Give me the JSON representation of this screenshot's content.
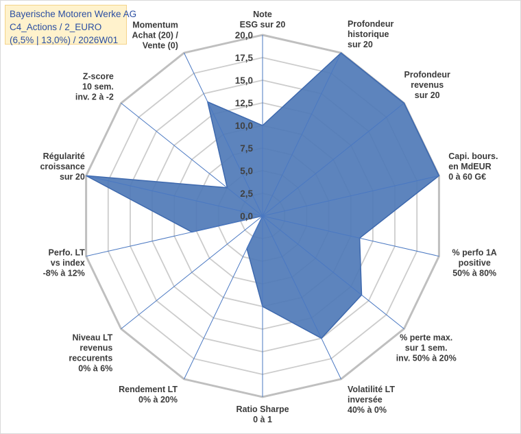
{
  "header": {
    "line1": "Bayerische Motoren Werke AG",
    "line2": "C4_Actions / 2_EURO",
    "line3": "(6,5% | 13,0%) / 2026W01"
  },
  "colors": {
    "fill": "#4f7ab7",
    "stroke": "#3d68ad",
    "grid": "#cccccc",
    "spoke": "#4a78c2",
    "title_bg": "#fff2cc",
    "title_text": "#2a4ea2"
  },
  "chart_data": {
    "type": "radar",
    "rmin": 0,
    "rmax": 20,
    "ticks": [
      "0,0",
      "2,5",
      "5,0",
      "7,5",
      "10,0",
      "12,5",
      "15,0",
      "17,5",
      "20,0"
    ],
    "axes": [
      {
        "label": [
          "Note",
          "ESG sur 20"
        ],
        "value": 10
      },
      {
        "label": [
          "Profondeur",
          "historique",
          "sur 20"
        ],
        "value": 20
      },
      {
        "label": [
          "Profondeur",
          "revenus",
          "sur 20"
        ],
        "value": 20
      },
      {
        "label": [
          "Capi. bours.",
          "en MdEUR",
          "0 à 60 G€"
        ],
        "value": 20
      },
      {
        "label": [
          "% perfo 1A",
          "positive",
          "50% à 80%"
        ],
        "value": 11
      },
      {
        "label": [
          "% perte max.",
          "sur 1 sem.",
          "inv. 50% à 20%"
        ],
        "value": 14
      },
      {
        "label": [
          "Volatilité LT",
          "inversée",
          "40% à 0%"
        ],
        "value": 15
      },
      {
        "label": [
          "Ratio Sharpe",
          "0 à 1"
        ],
        "value": 10
      },
      {
        "label": [
          "Rendement LT",
          "0% à 20%"
        ],
        "value": 4
      },
      {
        "label": [
          "Niveau LT",
          "revenus",
          "reccurents",
          "0% à 6%"
        ],
        "value": 0
      },
      {
        "label": [
          "Perfo. LT",
          "vs index",
          "-8% à 12%"
        ],
        "value": 8
      },
      {
        "label": [
          "Régularité",
          "croissance",
          "sur 20"
        ],
        "value": 20
      },
      {
        "label": [
          "Z-score",
          "10 sem.",
          "inv. 2 à -2"
        ],
        "value": 5
      },
      {
        "label": [
          "Momentum",
          "Achat (20) /",
          "Vente (0)"
        ],
        "value": 14
      }
    ]
  }
}
